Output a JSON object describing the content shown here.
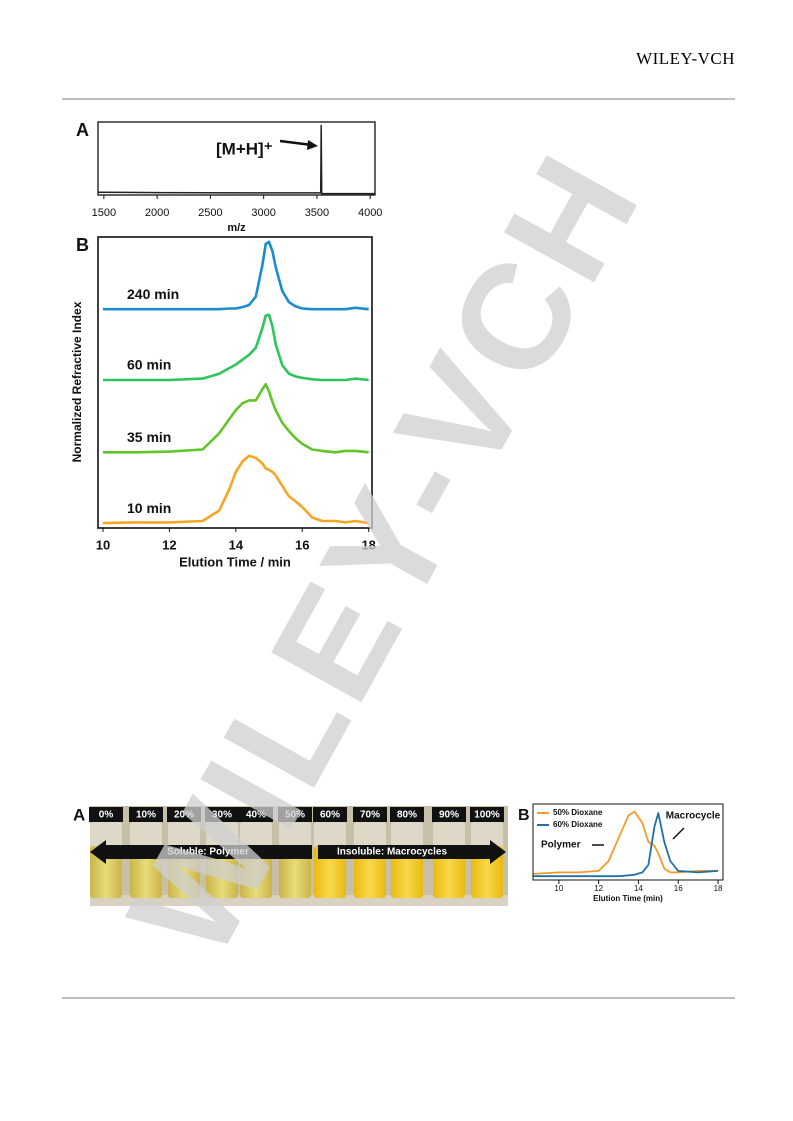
{
  "header": {
    "logo": "WILEY-VCH"
  },
  "watermark": "WILEY-VCH",
  "chart_data": [
    {
      "type": "line",
      "panel_label": "A",
      "xlabel": "m/z",
      "annotations": [
        "[M+H]⁺"
      ],
      "x": [
        1445,
        2000,
        3000,
        3530,
        3535,
        3540,
        3545,
        3550,
        4045
      ],
      "values": [
        4,
        3.5,
        3,
        3,
        3,
        100,
        2,
        2,
        2
      ],
      "color": "#222222",
      "xlim": [
        1445,
        4045
      ],
      "xticks": [
        1500,
        2000,
        2500,
        3000,
        3500,
        4000
      ],
      "ylim": [
        0,
        105
      ]
    },
    {
      "type": "line",
      "panel_label": "B",
      "xlabel": "Elution Time / min",
      "ylabel": "Normalized Refractive Index",
      "x": [
        10,
        11,
        12,
        13,
        13.5,
        13.8,
        14,
        14.2,
        14.4,
        14.6,
        14.8,
        14.9,
        15,
        15.1,
        15.2,
        15.4,
        15.6,
        15.8,
        16,
        16.3,
        16.6,
        17,
        17.3,
        17.6,
        18
      ],
      "series": [
        {
          "name": "240 min",
          "color": "#1c8ccc",
          "values": [
            3.12,
            3.12,
            3.12,
            3.12,
            3.12,
            3.13,
            3.13,
            3.15,
            3.18,
            3.3,
            3.75,
            4.05,
            4.08,
            3.95,
            3.72,
            3.38,
            3.22,
            3.16,
            3.13,
            3.12,
            3.12,
            3.12,
            3.12,
            3.14,
            3.12
          ]
        },
        {
          "name": "60 min",
          "color": "#2dc65a",
          "values": [
            2.11,
            2.11,
            2.11,
            2.13,
            2.2,
            2.28,
            2.33,
            2.4,
            2.47,
            2.57,
            2.85,
            3.03,
            3.04,
            2.88,
            2.62,
            2.32,
            2.2,
            2.16,
            2.14,
            2.12,
            2.11,
            2.11,
            2.11,
            2.13,
            2.11
          ]
        },
        {
          "name": "35 min",
          "color": "#62c52a",
          "values": [
            1.08,
            1.08,
            1.09,
            1.12,
            1.35,
            1.55,
            1.68,
            1.78,
            1.82,
            1.82,
            1.98,
            2.05,
            1.95,
            1.8,
            1.68,
            1.5,
            1.38,
            1.28,
            1.2,
            1.12,
            1.1,
            1.08,
            1.1,
            1.1,
            1.08
          ]
        },
        {
          "name": "10 min",
          "color": "#f5a623",
          "values": [
            0.07,
            0.08,
            0.08,
            0.1,
            0.25,
            0.55,
            0.8,
            0.95,
            1.03,
            1.0,
            0.92,
            0.85,
            0.83,
            0.8,
            0.75,
            0.6,
            0.45,
            0.38,
            0.3,
            0.15,
            0.1,
            0.1,
            0.08,
            0.1,
            0.07
          ]
        }
      ],
      "xlim": [
        9.85,
        18.1
      ],
      "xticks": [
        10,
        12,
        14,
        16,
        18
      ],
      "ylim": [
        0,
        4.15
      ]
    },
    {
      "type": "line",
      "panel_label": "B",
      "xlabel": "Elution Time (min)",
      "annotations": [
        "Macrocycle",
        "Polymer"
      ],
      "legend": "upper left",
      "x": [
        8.7,
        10,
        11,
        12,
        12.5,
        13,
        13.5,
        13.8,
        14.2,
        14.5,
        14.8,
        15,
        15.3,
        15.6,
        16,
        17,
        18
      ],
      "series": [
        {
          "name": "50% Dioxane",
          "color": "#f39a2b",
          "values": [
            0.08,
            0.1,
            0.1,
            0.12,
            0.25,
            0.55,
            0.85,
            0.9,
            0.75,
            0.5,
            0.45,
            0.35,
            0.15,
            0.1,
            0.1,
            0.12,
            0.12
          ]
        },
        {
          "name": "60% Dioxane",
          "color": "#1f6fa8",
          "values": [
            0.05,
            0.05,
            0.05,
            0.05,
            0.05,
            0.05,
            0.06,
            0.07,
            0.1,
            0.2,
            0.7,
            0.88,
            0.5,
            0.25,
            0.12,
            0.1,
            0.12
          ]
        }
      ],
      "xlim": [
        8.7,
        18.25
      ],
      "xticks": [
        10,
        12,
        14,
        16,
        18
      ],
      "ylim": [
        0,
        1
      ]
    }
  ],
  "photo": {
    "panel_label": "A",
    "vial_labels": [
      "0%",
      "10%",
      "20%",
      "30%",
      "40%",
      "50%",
      "60%",
      "70%",
      "80%",
      "90%",
      "100%"
    ],
    "arrow_left": "Soluble: Polymer",
    "arrow_right": "Insoluble: Macrocycles"
  }
}
